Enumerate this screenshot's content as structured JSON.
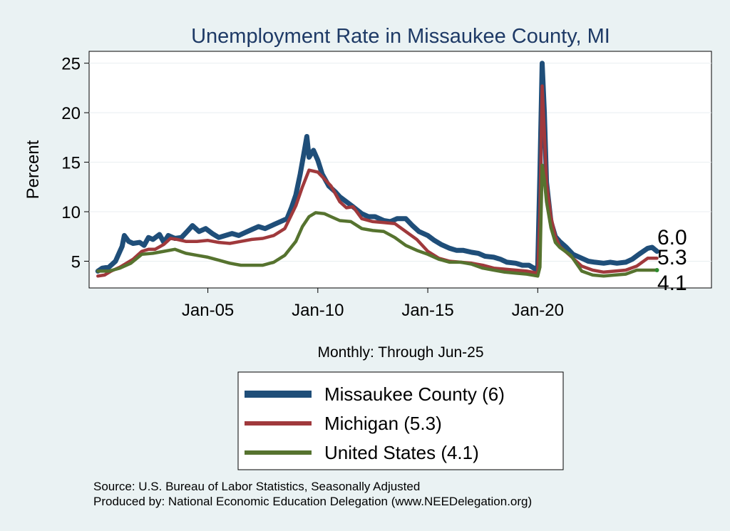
{
  "chart_data": {
    "type": "line",
    "title": "Unemployment Rate in Missaukee  County, MI",
    "ylabel": "Percent",
    "xlabel": "Monthly: Through Jun-25",
    "ylim": [
      2.3,
      26.2
    ],
    "xlim": [
      1999.6,
      2027.9
    ],
    "yticks": [
      5,
      10,
      15,
      20,
      25
    ],
    "xticks": [
      {
        "label": "Jan-05",
        "value": 2005.0
      },
      {
        "label": "Jan-10",
        "value": 2010.0
      },
      {
        "label": "Jan-15",
        "value": 2015.0
      },
      {
        "label": "Jan-20",
        "value": 2020.0
      }
    ],
    "series": [
      {
        "name": "Missaukee  County",
        "legend_label": "Missaukee  County (6)",
        "color": "#1f4e79",
        "end_label": "6.0",
        "points": [
          [
            2000.0,
            4.0
          ],
          [
            2000.2,
            4.3
          ],
          [
            2000.5,
            4.4
          ],
          [
            2000.8,
            5.0
          ],
          [
            2001.0,
            6.0
          ],
          [
            2001.1,
            6.5
          ],
          [
            2001.2,
            7.6
          ],
          [
            2001.4,
            7.0
          ],
          [
            2001.6,
            6.8
          ],
          [
            2001.9,
            6.9
          ],
          [
            2002.1,
            6.6
          ],
          [
            2002.3,
            7.4
          ],
          [
            2002.5,
            7.2
          ],
          [
            2002.8,
            7.7
          ],
          [
            2003.0,
            6.9
          ],
          [
            2003.2,
            7.6
          ],
          [
            2003.5,
            7.3
          ],
          [
            2003.8,
            7.4
          ],
          [
            2004.1,
            8.1
          ],
          [
            2004.3,
            8.6
          ],
          [
            2004.6,
            8.0
          ],
          [
            2004.9,
            8.3
          ],
          [
            2005.2,
            7.8
          ],
          [
            2005.5,
            7.4
          ],
          [
            2005.8,
            7.6
          ],
          [
            2006.1,
            7.8
          ],
          [
            2006.4,
            7.6
          ],
          [
            2006.7,
            7.9
          ],
          [
            2007.0,
            8.2
          ],
          [
            2007.3,
            8.5
          ],
          [
            2007.6,
            8.3
          ],
          [
            2008.0,
            8.7
          ],
          [
            2008.3,
            9.0
          ],
          [
            2008.6,
            9.3
          ],
          [
            2008.8,
            10.4
          ],
          [
            2009.0,
            11.7
          ],
          [
            2009.2,
            13.8
          ],
          [
            2009.4,
            16.3
          ],
          [
            2009.5,
            17.6
          ],
          [
            2009.6,
            15.5
          ],
          [
            2009.8,
            16.2
          ],
          [
            2010.0,
            15.2
          ],
          [
            2010.2,
            13.8
          ],
          [
            2010.5,
            12.6
          ],
          [
            2010.8,
            12.0
          ],
          [
            2011.0,
            11.5
          ],
          [
            2011.3,
            11.0
          ],
          [
            2011.6,
            10.5
          ],
          [
            2012.0,
            9.8
          ],
          [
            2012.3,
            9.5
          ],
          [
            2012.6,
            9.5
          ],
          [
            2013.0,
            9.1
          ],
          [
            2013.3,
            9.0
          ],
          [
            2013.6,
            9.3
          ],
          [
            2014.0,
            9.3
          ],
          [
            2014.3,
            8.6
          ],
          [
            2014.6,
            8.0
          ],
          [
            2015.0,
            7.6
          ],
          [
            2015.3,
            7.1
          ],
          [
            2015.6,
            6.7
          ],
          [
            2016.0,
            6.3
          ],
          [
            2016.3,
            6.1
          ],
          [
            2016.6,
            6.1
          ],
          [
            2017.0,
            5.9
          ],
          [
            2017.3,
            5.8
          ],
          [
            2017.6,
            5.5
          ],
          [
            2018.0,
            5.4
          ],
          [
            2018.3,
            5.2
          ],
          [
            2018.6,
            4.9
          ],
          [
            2019.0,
            4.8
          ],
          [
            2019.3,
            4.6
          ],
          [
            2019.6,
            4.6
          ],
          [
            2019.9,
            4.2
          ],
          [
            2020.0,
            4.5
          ],
          [
            2020.1,
            14.0
          ],
          [
            2020.2,
            25.0
          ],
          [
            2020.3,
            20.0
          ],
          [
            2020.4,
            13.0
          ],
          [
            2020.6,
            9.0
          ],
          [
            2020.8,
            7.5
          ],
          [
            2021.0,
            7.0
          ],
          [
            2021.3,
            6.4
          ],
          [
            2021.6,
            5.7
          ],
          [
            2022.0,
            5.3
          ],
          [
            2022.3,
            5.0
          ],
          [
            2022.6,
            4.9
          ],
          [
            2023.0,
            4.8
          ],
          [
            2023.3,
            4.9
          ],
          [
            2023.6,
            4.8
          ],
          [
            2024.0,
            4.9
          ],
          [
            2024.3,
            5.2
          ],
          [
            2024.6,
            5.7
          ],
          [
            2025.0,
            6.3
          ],
          [
            2025.2,
            6.4
          ],
          [
            2025.42,
            6.0
          ]
        ]
      },
      {
        "name": "Michigan",
        "legend_label": "Michigan (5.3)",
        "color": "#a0393c",
        "end_label": "5.3",
        "points": [
          [
            2000.0,
            3.5
          ],
          [
            2000.3,
            3.6
          ],
          [
            2000.6,
            4.0
          ],
          [
            2001.0,
            4.4
          ],
          [
            2001.3,
            4.8
          ],
          [
            2001.6,
            5.2
          ],
          [
            2002.0,
            6.0
          ],
          [
            2002.3,
            6.2
          ],
          [
            2002.6,
            6.2
          ],
          [
            2003.0,
            6.7
          ],
          [
            2003.3,
            7.3
          ],
          [
            2003.6,
            7.2
          ],
          [
            2004.0,
            7.0
          ],
          [
            2004.5,
            7.0
          ],
          [
            2005.0,
            7.1
          ],
          [
            2005.5,
            6.9
          ],
          [
            2006.0,
            6.8
          ],
          [
            2006.5,
            7.0
          ],
          [
            2007.0,
            7.2
          ],
          [
            2007.5,
            7.3
          ],
          [
            2008.0,
            7.6
          ],
          [
            2008.5,
            8.3
          ],
          [
            2009.0,
            10.6
          ],
          [
            2009.3,
            12.5
          ],
          [
            2009.6,
            14.2
          ],
          [
            2010.0,
            14.0
          ],
          [
            2010.3,
            13.3
          ],
          [
            2010.6,
            12.6
          ],
          [
            2011.0,
            11.0
          ],
          [
            2011.3,
            10.4
          ],
          [
            2011.6,
            10.5
          ],
          [
            2012.0,
            9.3
          ],
          [
            2012.5,
            9.0
          ],
          [
            2013.0,
            8.9
          ],
          [
            2013.5,
            8.8
          ],
          [
            2014.0,
            8.0
          ],
          [
            2014.5,
            7.2
          ],
          [
            2015.0,
            6.0
          ],
          [
            2015.5,
            5.3
          ],
          [
            2016.0,
            5.0
          ],
          [
            2016.5,
            4.9
          ],
          [
            2017.0,
            4.8
          ],
          [
            2017.5,
            4.6
          ],
          [
            2018.0,
            4.3
          ],
          [
            2018.5,
            4.2
          ],
          [
            2019.0,
            4.1
          ],
          [
            2019.5,
            4.0
          ],
          [
            2020.0,
            3.8
          ],
          [
            2020.1,
            10.0
          ],
          [
            2020.2,
            22.7
          ],
          [
            2020.3,
            18.0
          ],
          [
            2020.4,
            13.0
          ],
          [
            2020.6,
            9.5
          ],
          [
            2020.8,
            7.5
          ],
          [
            2021.0,
            6.5
          ],
          [
            2021.5,
            5.5
          ],
          [
            2022.0,
            4.5
          ],
          [
            2022.5,
            4.1
          ],
          [
            2023.0,
            3.9
          ],
          [
            2023.5,
            4.0
          ],
          [
            2024.0,
            4.1
          ],
          [
            2024.5,
            4.5
          ],
          [
            2025.0,
            5.3
          ],
          [
            2025.42,
            5.3
          ]
        ]
      },
      {
        "name": "United States",
        "legend_label": "United States (4.1)",
        "color": "#56732f",
        "end_label": "4.1",
        "points": [
          [
            2000.0,
            4.0
          ],
          [
            2000.5,
            4.0
          ],
          [
            2001.0,
            4.3
          ],
          [
            2001.5,
            4.8
          ],
          [
            2002.0,
            5.7
          ],
          [
            2002.5,
            5.8
          ],
          [
            2003.0,
            6.0
          ],
          [
            2003.5,
            6.2
          ],
          [
            2004.0,
            5.8
          ],
          [
            2004.5,
            5.6
          ],
          [
            2005.0,
            5.4
          ],
          [
            2005.5,
            5.1
          ],
          [
            2006.0,
            4.8
          ],
          [
            2006.5,
            4.6
          ],
          [
            2007.0,
            4.6
          ],
          [
            2007.5,
            4.6
          ],
          [
            2008.0,
            4.9
          ],
          [
            2008.5,
            5.6
          ],
          [
            2009.0,
            7.0
          ],
          [
            2009.3,
            8.5
          ],
          [
            2009.6,
            9.5
          ],
          [
            2009.9,
            9.9
          ],
          [
            2010.3,
            9.8
          ],
          [
            2010.6,
            9.5
          ],
          [
            2011.0,
            9.1
          ],
          [
            2011.5,
            9.0
          ],
          [
            2012.0,
            8.3
          ],
          [
            2012.5,
            8.1
          ],
          [
            2013.0,
            8.0
          ],
          [
            2013.5,
            7.4
          ],
          [
            2014.0,
            6.6
          ],
          [
            2014.5,
            6.1
          ],
          [
            2015.0,
            5.7
          ],
          [
            2015.5,
            5.2
          ],
          [
            2016.0,
            4.9
          ],
          [
            2016.5,
            4.9
          ],
          [
            2017.0,
            4.7
          ],
          [
            2017.5,
            4.3
          ],
          [
            2018.0,
            4.1
          ],
          [
            2018.5,
            3.9
          ],
          [
            2019.0,
            3.8
          ],
          [
            2019.5,
            3.7
          ],
          [
            2020.0,
            3.5
          ],
          [
            2020.1,
            4.4
          ],
          [
            2020.2,
            14.7
          ],
          [
            2020.3,
            13.2
          ],
          [
            2020.4,
            11.0
          ],
          [
            2020.6,
            8.4
          ],
          [
            2020.8,
            6.9
          ],
          [
            2021.0,
            6.4
          ],
          [
            2021.5,
            5.6
          ],
          [
            2022.0,
            4.0
          ],
          [
            2022.5,
            3.6
          ],
          [
            2023.0,
            3.5
          ],
          [
            2023.5,
            3.6
          ],
          [
            2024.0,
            3.7
          ],
          [
            2024.5,
            4.1
          ],
          [
            2025.0,
            4.1
          ],
          [
            2025.42,
            4.1
          ]
        ]
      }
    ]
  },
  "footer": {
    "source": "Source: U.S. Bureau of Labor Statistics, Seasonally Adjusted",
    "produced_by": "Produced by: National Economic Education Delegation (www.NEEDelegation.org)"
  }
}
